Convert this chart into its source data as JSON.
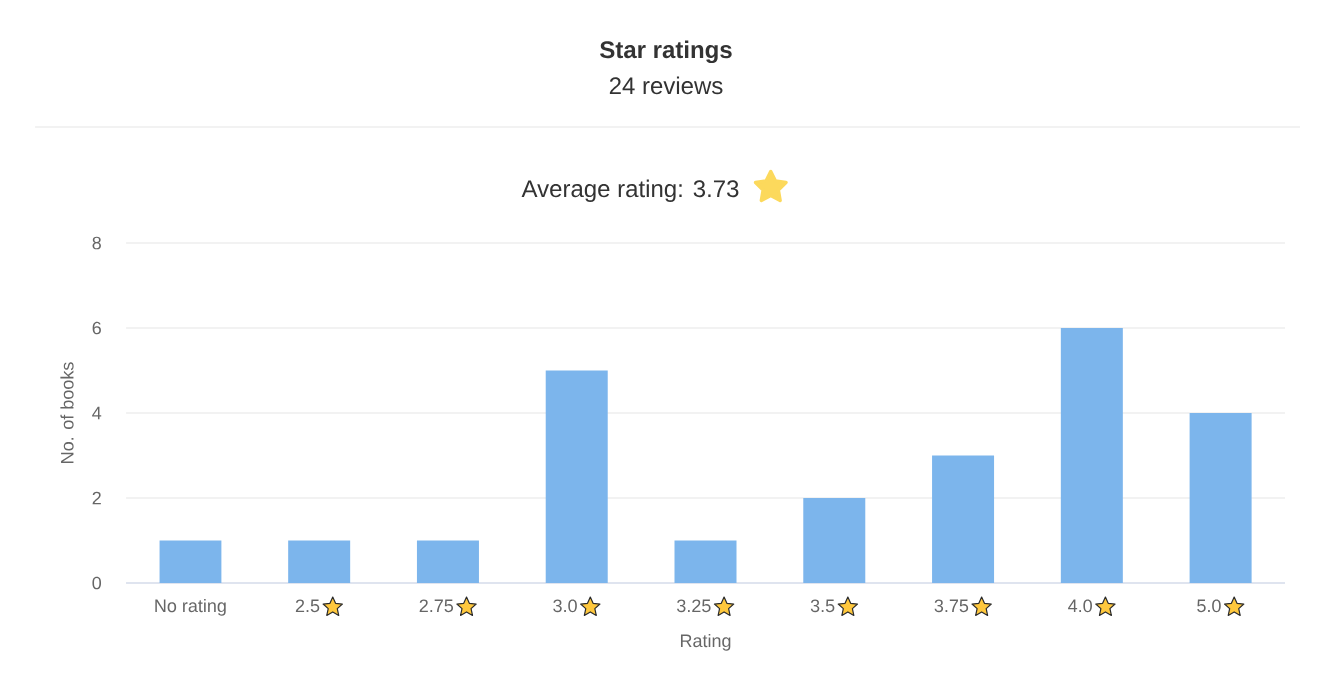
{
  "chart_data": {
    "type": "bar",
    "title": "Star ratings",
    "subtitle": "24 reviews",
    "annotations": [
      "Average rating: 3.73"
    ],
    "categories": [
      "No rating",
      "2.5",
      "2.75",
      "3.0",
      "3.25",
      "3.5",
      "3.75",
      "4.0",
      "5.0"
    ],
    "values": [
      1,
      1,
      1,
      5,
      1,
      2,
      3,
      6,
      4
    ],
    "color": "#7cb5ec",
    "xlabel": "Rating",
    "ylabel": "No. of books",
    "ylim": [
      0,
      8
    ],
    "yticks": [
      0,
      2,
      4,
      6,
      8
    ],
    "grid": "y"
  }
}
